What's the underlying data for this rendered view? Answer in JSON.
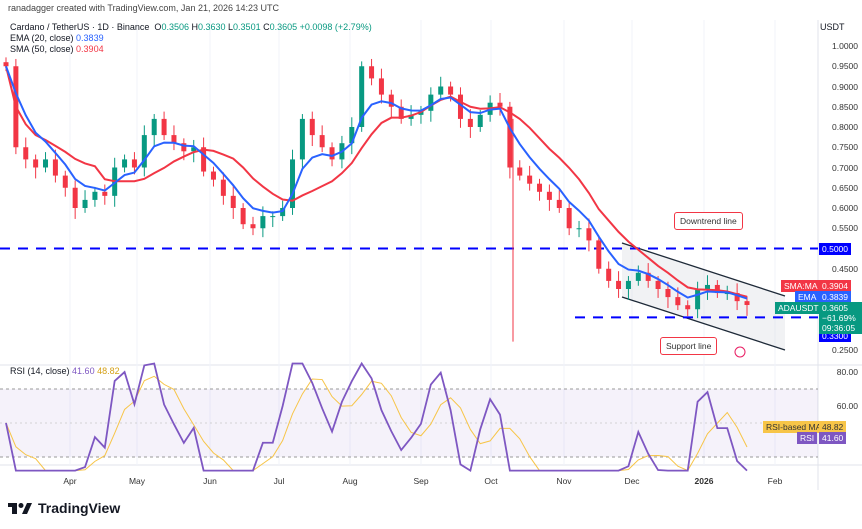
{
  "credit": "ranadagger created with TradingView.com, Jan 21, 2026 14:23 UTC",
  "legend": {
    "symbol": "Cardano / TetherUS · 1D · Binance",
    "o_label": "O",
    "o": "0.3506",
    "h_label": "H",
    "h": "0.3630",
    "l_label": "L",
    "l": "0.3501",
    "c_label": "C",
    "c": "0.3605",
    "change": "+0.0098 (+2.79%)",
    "ema_label": "EMA (20, close)",
    "ema_value": "0.3839",
    "sma_label": "SMA (50, close)",
    "sma_value": "0.3904",
    "rsi_label": "RSI (14, close)",
    "rsi_value": "41.60",
    "rsi_ma_value": "48.82"
  },
  "currency": "USDT",
  "price_axis": [
    "1.0000",
    "0.9500",
    "0.9000",
    "0.8500",
    "0.8000",
    "0.7500",
    "0.7000",
    "0.6500",
    "0.6000",
    "0.5500",
    "0.4500",
    "0.2500"
  ],
  "price_tags": {
    "resistance": "0.5000",
    "support": "0.3300",
    "sma_label": "SMA:MA",
    "sma": "0.3904",
    "ema_label": "EMA",
    "ema": "0.3839",
    "symbol_label": "ADAUSDT",
    "last": "0.3605",
    "pct": "−61.69%",
    "countdown": "09:36:05"
  },
  "rsi_axis": [
    "80.00",
    "60.00"
  ],
  "rsi_tags": {
    "ma_label": "RSI-based MA",
    "ma": "48.82",
    "rsi_label": "RSI",
    "rsi": "41.60"
  },
  "time_axis": [
    "Apr",
    "May",
    "Jun",
    "Jul",
    "Aug",
    "Sep",
    "Oct",
    "Nov",
    "Dec",
    "2026",
    "Feb"
  ],
  "annotations": {
    "downtrend": "Downtrend line",
    "support": "Support line"
  },
  "footer": "TradingView",
  "colors": {
    "up": "#089981",
    "down": "#f23645",
    "ema": "#2962ff",
    "sma": "#f23645",
    "rsi": "#7e57c2",
    "rsi_ma": "#f7c548",
    "level": "#0000ff"
  },
  "chart_data": {
    "type": "candlestick",
    "ylim": [
      0.25,
      1.02
    ],
    "closes": [
      0.95,
      0.75,
      0.72,
      0.7,
      0.72,
      0.68,
      0.65,
      0.6,
      0.62,
      0.64,
      0.63,
      0.7,
      0.72,
      0.7,
      0.78,
      0.82,
      0.78,
      0.76,
      0.74,
      0.75,
      0.69,
      0.67,
      0.63,
      0.6,
      0.56,
      0.55,
      0.58,
      0.58,
      0.6,
      0.72,
      0.82,
      0.78,
      0.75,
      0.72,
      0.76,
      0.8,
      0.95,
      0.92,
      0.88,
      0.85,
      0.82,
      0.83,
      0.84,
      0.88,
      0.9,
      0.88,
      0.82,
      0.8,
      0.83,
      0.86,
      0.85,
      0.7,
      0.68,
      0.66,
      0.64,
      0.62,
      0.6,
      0.55,
      0.55,
      0.52,
      0.45,
      0.42,
      0.4,
      0.42,
      0.44,
      0.42,
      0.4,
      0.38,
      0.36,
      0.35,
      0.4,
      0.41,
      0.39,
      0.39,
      0.37,
      0.3605
    ],
    "levels": [
      0.5,
      0.33
    ]
  }
}
